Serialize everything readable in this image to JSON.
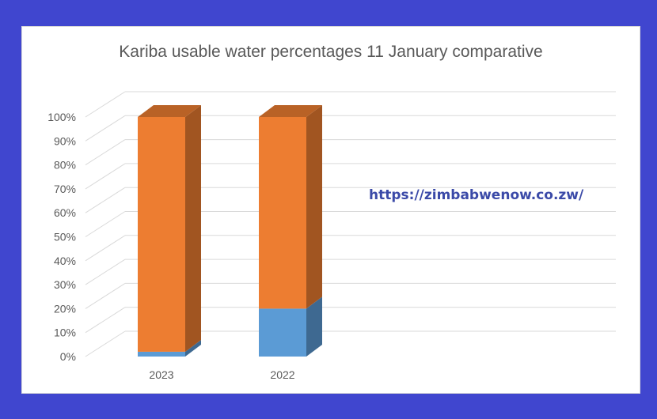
{
  "chart_data": {
    "type": "bar",
    "stacked": true,
    "three_d": true,
    "title": "Kariba usable water percentages 11 January comparative",
    "categories": [
      "2023",
      "2022"
    ],
    "series": [
      {
        "values": [
          2,
          20
        ],
        "color": "#5b9bd5"
      },
      {
        "values": [
          98,
          80
        ],
        "color": "#ed7d31"
      }
    ],
    "ylim": [
      0,
      100
    ],
    "yticks": [
      "0%",
      "10%",
      "20%",
      "30%",
      "40%",
      "50%",
      "60%",
      "70%",
      "80%",
      "90%",
      "100%"
    ],
    "xlabel": "",
    "ylabel": "",
    "grid": true,
    "legend": "none"
  },
  "watermark": "https://zimbabwenow.co.zw/",
  "colors": {
    "background": "#4046cf",
    "gridline": "#d9d9d9",
    "text": "#595959"
  }
}
